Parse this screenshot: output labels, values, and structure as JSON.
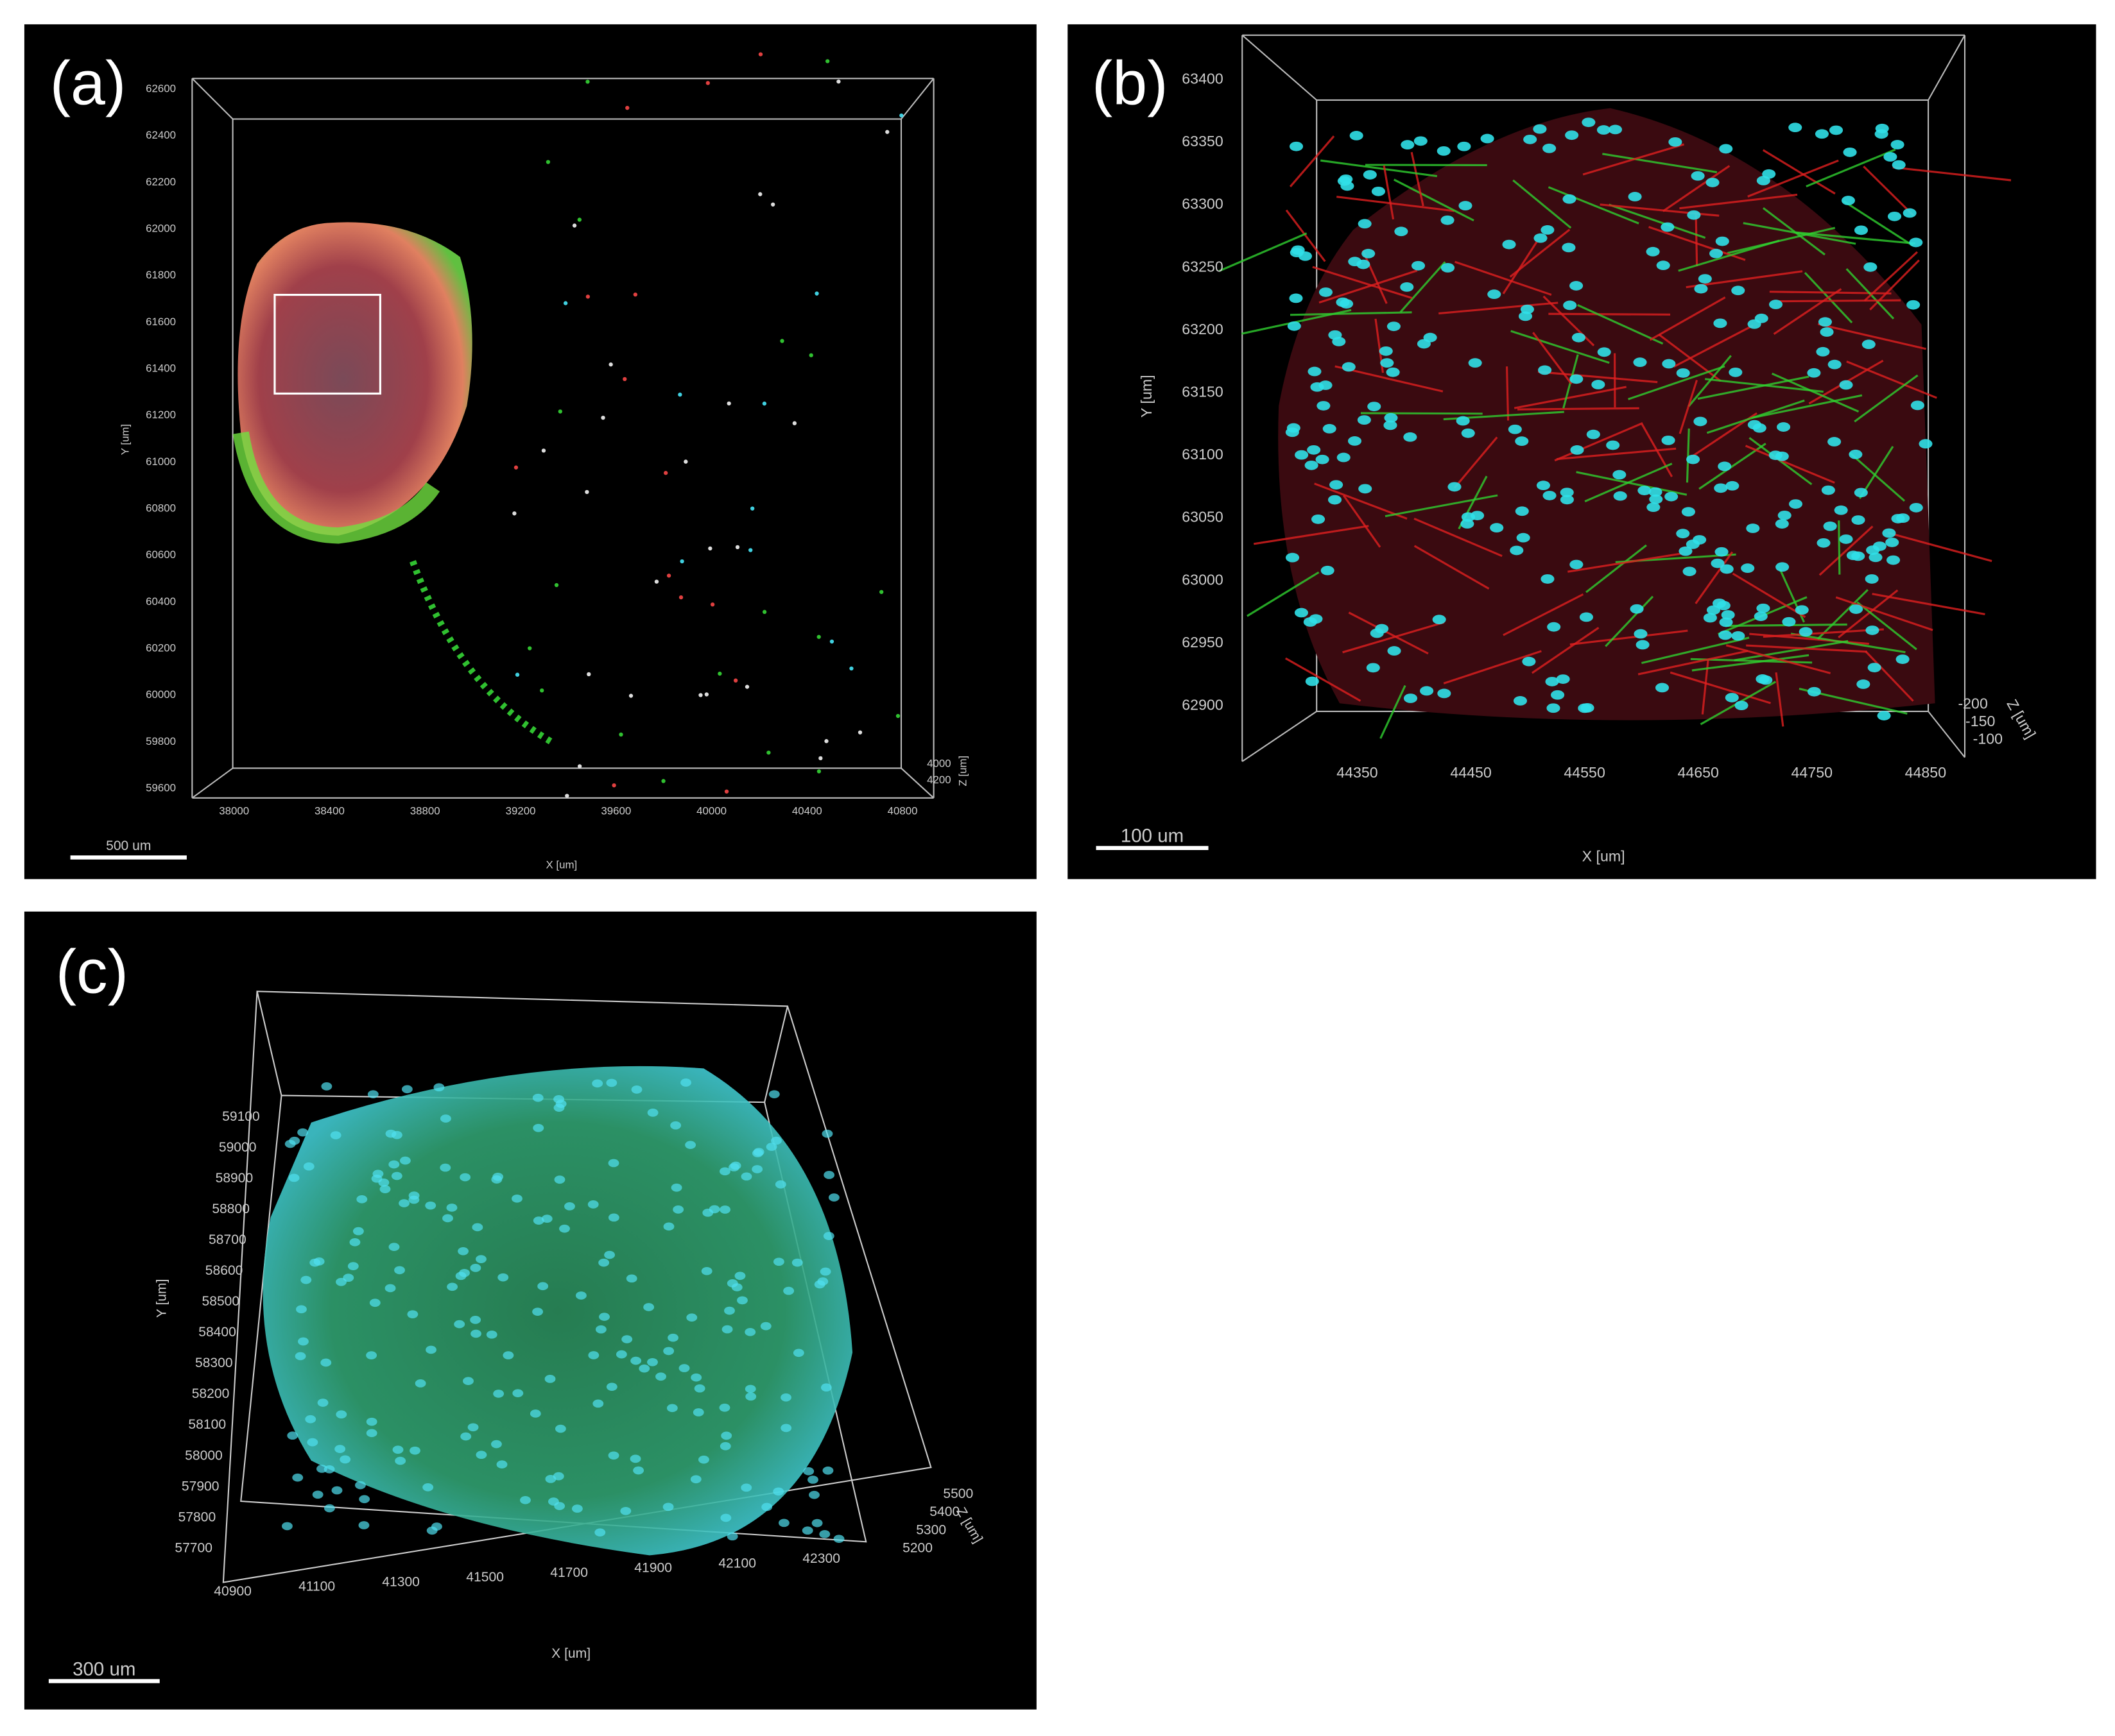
{
  "panels": [
    {
      "label": "(a)",
      "scale_bar": "500 um",
      "x_axis": "X [um]",
      "y_axis": "Y [um]",
      "z_axis": "Z [um]",
      "yticks": [
        62600,
        62400,
        62200,
        62000,
        61800,
        61600,
        61400,
        61200,
        61000,
        60800,
        60600,
        60400,
        60200,
        60000,
        59800,
        59600
      ],
      "xticks": [
        38000,
        38400,
        38800,
        39200,
        39600,
        40000,
        40400,
        40800
      ],
      "zticks": [
        4000,
        4200
      ]
    },
    {
      "label": "(b)",
      "scale_bar": "100 um",
      "x_axis": "X [um]",
      "y_axis": "Y [um]",
      "z_axis": "Z [um]",
      "yticks": [
        63400,
        63350,
        63300,
        63250,
        63200,
        63150,
        63100,
        63050,
        63000,
        62950,
        62900
      ],
      "xticks": [
        44350,
        44450,
        44550,
        44650,
        44750,
        44850
      ],
      "zticks": [
        -200,
        -150,
        -100
      ]
    },
    {
      "label": "(c)",
      "scale_bar": "300 um",
      "x_axis": "X [um]",
      "y_axis": "Y [um]",
      "z_axis": "Z [um]",
      "yticks": [
        59100,
        59000,
        58900,
        58800,
        58700,
        58600,
        58500,
        58400,
        58300,
        58200,
        58100,
        58000,
        57900,
        57800,
        57700
      ],
      "xticks": [
        40900,
        41100,
        41300,
        41500,
        41700,
        41900,
        42100,
        42300
      ],
      "zticks": [
        5500,
        5400,
        5300,
        5200
      ]
    }
  ]
}
